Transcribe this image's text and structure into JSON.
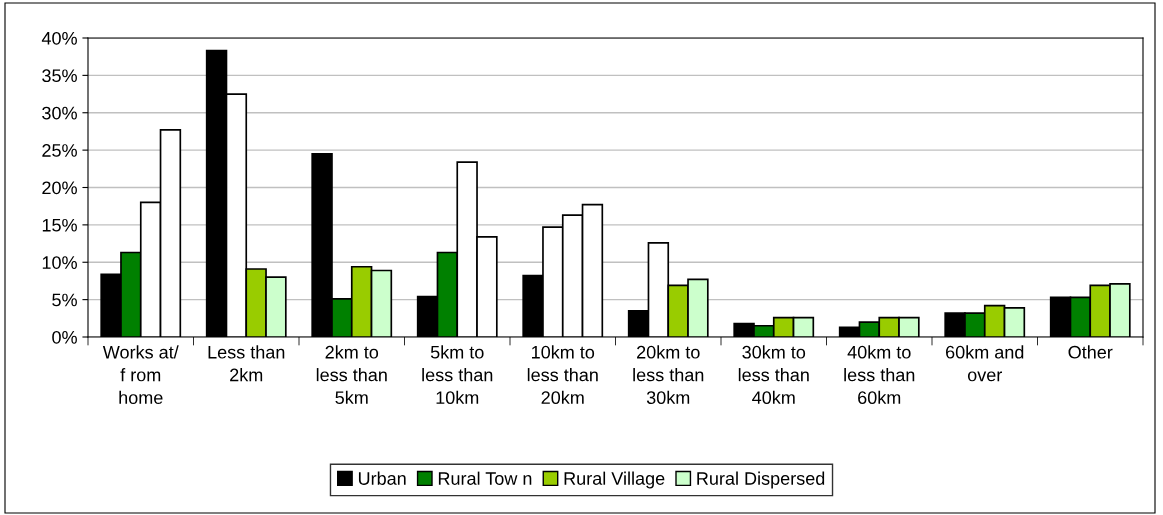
{
  "chart_data": {
    "type": "bar",
    "categories": [
      "Works at/\nf rom\nhome",
      "Less than\n2km",
      "2km to\nless than\n5km",
      "5km to\nless than\n10km",
      "10km to\nless than\n20km",
      "20km to\nless than\n30km",
      "30km to\nless than\n40km",
      "40km to\nless than\n60km",
      "60km and\nover",
      "Other"
    ],
    "series": [
      {
        "name": "Urban",
        "color": "#000000",
        "values": [
          8.4,
          38.3,
          24.5,
          5.4,
          8.2,
          3.5,
          1.8,
          1.3,
          3.2,
          5.3
        ]
      },
      {
        "name": "Rural Tow n",
        "color": "#008000",
        "colors": [
          "#008000",
          "#ffffff",
          "#008000",
          "#008000",
          "#ffffff",
          "#ffffff",
          "#008000",
          "#008000",
          "#008000",
          "#008000"
        ],
        "values": [
          11.3,
          32.5,
          5.1,
          11.3,
          14.7,
          12.6,
          1.5,
          2.0,
          3.2,
          5.3
        ]
      },
      {
        "name": "Rural Village",
        "color": "#99cc00",
        "colors": [
          "#ffffff",
          "#99cc00",
          "#99cc00",
          "#ffffff",
          "#ffffff",
          "#99cc00",
          "#99cc00",
          "#99cc00",
          "#99cc00",
          "#99cc00"
        ],
        "values": [
          18.0,
          9.1,
          9.4,
          23.4,
          16.3,
          6.9,
          2.6,
          2.6,
          4.2,
          6.9
        ]
      },
      {
        "name": "Rural Dispersed",
        "color": "#ccffcc",
        "colors": [
          "#ffffff",
          "#ccffcc",
          "#ccffcc",
          "#ffffff",
          "#ffffff",
          "#ccffcc",
          "#ccffcc",
          "#ccffcc",
          "#ccffcc",
          "#ccffcc"
        ],
        "values": [
          27.7,
          8.0,
          8.9,
          13.4,
          17.7,
          7.7,
          2.6,
          2.6,
          3.9,
          7.1
        ]
      }
    ],
    "ylim": [
      0,
      40
    ],
    "yticks": [
      {
        "value": 0,
        "label": "0%"
      },
      {
        "value": 5,
        "label": "5%"
      },
      {
        "value": 10,
        "label": "10%"
      },
      {
        "value": 15,
        "label": "15%"
      },
      {
        "value": 20,
        "label": "20%"
      },
      {
        "value": 25,
        "label": "25%"
      },
      {
        "value": 30,
        "label": "30%"
      },
      {
        "value": 35,
        "label": "35%"
      },
      {
        "value": 40,
        "label": "40%"
      }
    ],
    "grid": "y",
    "legend": "bottom"
  }
}
